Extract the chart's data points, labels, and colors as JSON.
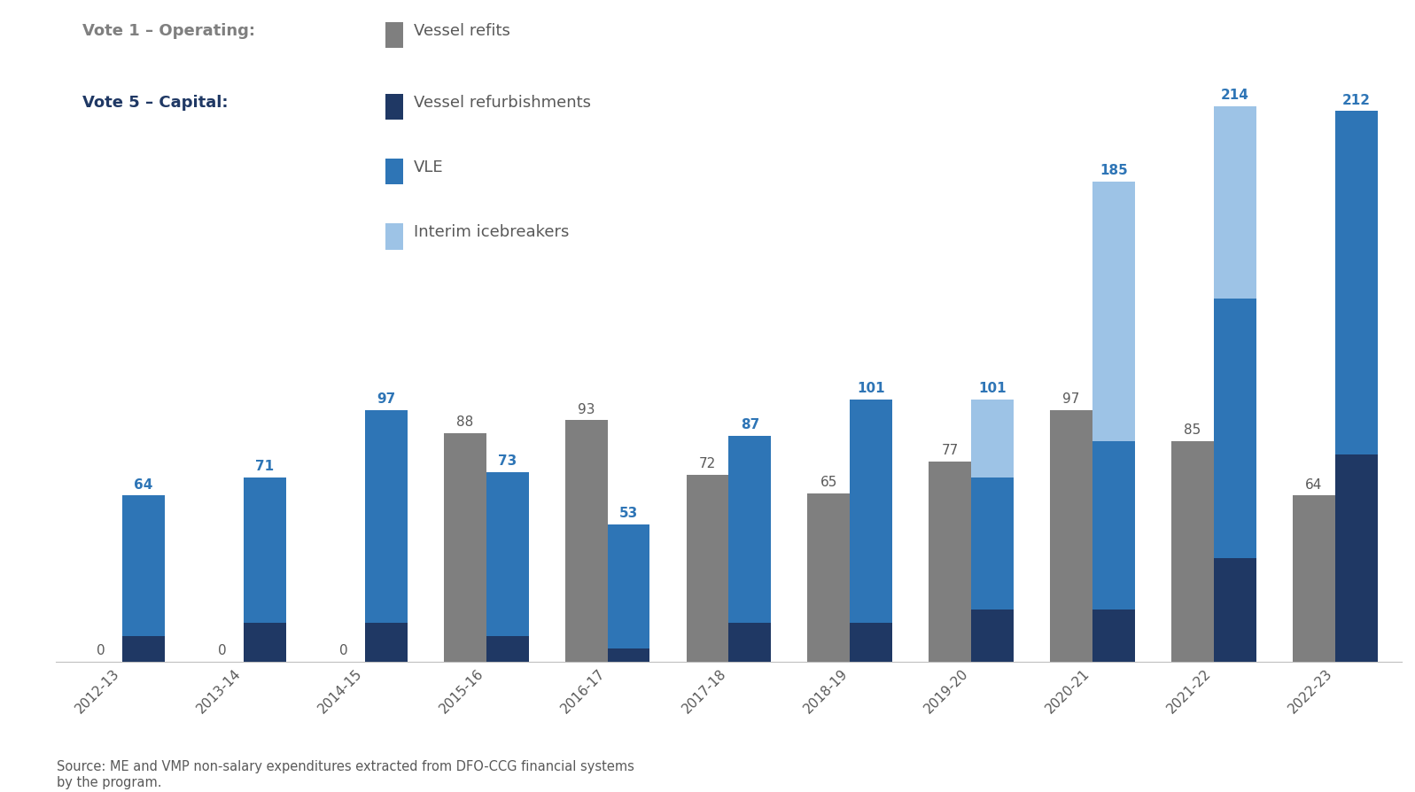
{
  "years": [
    "2012-13",
    "2013-14",
    "2014-15",
    "2015-16",
    "2016-17",
    "2017-18",
    "2018-19",
    "2019-20",
    "2020-21",
    "2021-22",
    "2022-23"
  ],
  "vote1_refits": [
    0,
    0,
    0,
    88,
    93,
    72,
    65,
    77,
    97,
    85,
    64
  ],
  "vote1_labels": [
    "0",
    "0",
    "0",
    "88",
    "93",
    "72",
    "65",
    "77",
    "97",
    "85",
    "64"
  ],
  "vote5_refurb": [
    10,
    15,
    15,
    10,
    5,
    15,
    15,
    20,
    20,
    40,
    80
  ],
  "vote5_vle": [
    54,
    56,
    82,
    63,
    48,
    72,
    86,
    51,
    65,
    100,
    132
  ],
  "vote5_interim": [
    0,
    0,
    0,
    0,
    0,
    0,
    0,
    30,
    100,
    74,
    0
  ],
  "vote5_totals": [
    64,
    71,
    97,
    73,
    53,
    87,
    101,
    101,
    185,
    214,
    212
  ],
  "vote5_label_show_0": [
    false,
    false,
    false,
    true,
    true,
    true,
    true,
    true,
    true,
    true,
    true
  ],
  "colors": {
    "vessel_refits": "#7F7F7F",
    "vessel_refurbishments": "#1F3864",
    "vle": "#2E75B6",
    "interim_icebreakers": "#9DC3E6"
  },
  "footnote": "Source: ME and VMP non-salary expenditures extracted from DFO-CCG financial systems\nby the program.",
  "legend": {
    "vote1_label": "Vote 1 – Operating:",
    "vote5_label": "Vote 5 – Capital:",
    "refits": "Vessel refits",
    "refurb": "Vessel refurbishments",
    "vle": "VLE",
    "interim": "Interim icebreakers"
  }
}
